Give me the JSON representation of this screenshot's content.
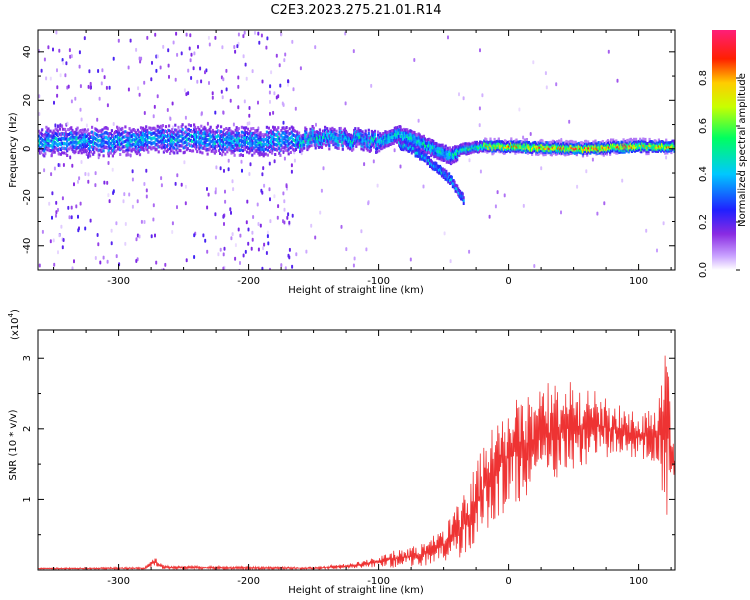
{
  "title": "C2E3.2023.275.21.01.R14",
  "chart_data": [
    {
      "type": "heatmap",
      "xlabel": "Height of straight line (km)",
      "ylabel": "Frequency (Hz)",
      "xlim": [
        -362,
        128
      ],
      "ylim": [
        -50,
        49
      ],
      "x_ticks": [
        -300,
        -200,
        -100,
        0,
        100
      ],
      "y_ticks": [
        -40,
        -20,
        0,
        20,
        40
      ],
      "colorbar": {
        "label": "Normalized spectral amplitude",
        "range": [
          0,
          1
        ],
        "ticks": [
          "0.0",
          "0.2",
          "0.4",
          "0.6",
          "0.8"
        ],
        "colormap": [
          "#ffffff",
          "#8a2be2",
          "#0000ff",
          "#00ffff",
          "#00ff00",
          "#ffff00",
          "#ff0000",
          "#ff1493"
        ]
      },
      "ridge": {
        "x": [
          -360,
          -300,
          -250,
          -200,
          -165,
          -150,
          -120,
          -100,
          -85,
          -70,
          -55,
          -45,
          -35,
          -20,
          0,
          50,
          100,
          128
        ],
        "freq_hz": [
          3,
          3,
          4,
          3,
          3,
          5,
          4,
          3,
          6,
          3,
          -1,
          -3,
          0,
          1,
          1,
          0,
          1,
          1
        ]
      },
      "branch": {
        "x": [
          -85,
          -75,
          -65,
          -55,
          -45,
          -35
        ],
        "freq_hz": [
          2,
          0,
          -4,
          -8,
          -13,
          -21
        ]
      }
    },
    {
      "type": "line",
      "xlabel": "Height of straight line (km)",
      "ylabel": "SNR (10 * v/v)",
      "y_multiplier": "(x10",
      "y_multiplier_exp": "4",
      "xlim": [
        -362,
        128
      ],
      "ylim": [
        0,
        3.4
      ],
      "x_ticks": [
        -300,
        -200,
        -100,
        0,
        100
      ],
      "y_ticks": [
        1,
        2,
        3
      ],
      "color": "#ee3333",
      "envelope": {
        "x": [
          -362,
          -280,
          -272,
          -265,
          -150,
          -120,
          -100,
          -90,
          -70,
          -50,
          -40,
          -30,
          -20,
          -10,
          0,
          20,
          40,
          60,
          80,
          100,
          115,
          122,
          125,
          128
        ],
        "low": [
          0.01,
          0.01,
          0.04,
          0.01,
          0.01,
          0.02,
          0.04,
          0.03,
          0.05,
          0.1,
          0.15,
          0.25,
          0.45,
          0.7,
          0.85,
          1.1,
          1.3,
          1.5,
          1.6,
          1.6,
          1.4,
          0.7,
          1.0,
          1.3
        ],
        "high": [
          0.03,
          0.04,
          0.18,
          0.06,
          0.04,
          0.1,
          0.2,
          0.3,
          0.35,
          0.6,
          0.9,
          1.3,
          1.8,
          2.3,
          2.4,
          2.6,
          2.7,
          2.6,
          2.4,
          2.2,
          2.4,
          3.35,
          2.1,
          1.7
        ]
      }
    }
  ]
}
